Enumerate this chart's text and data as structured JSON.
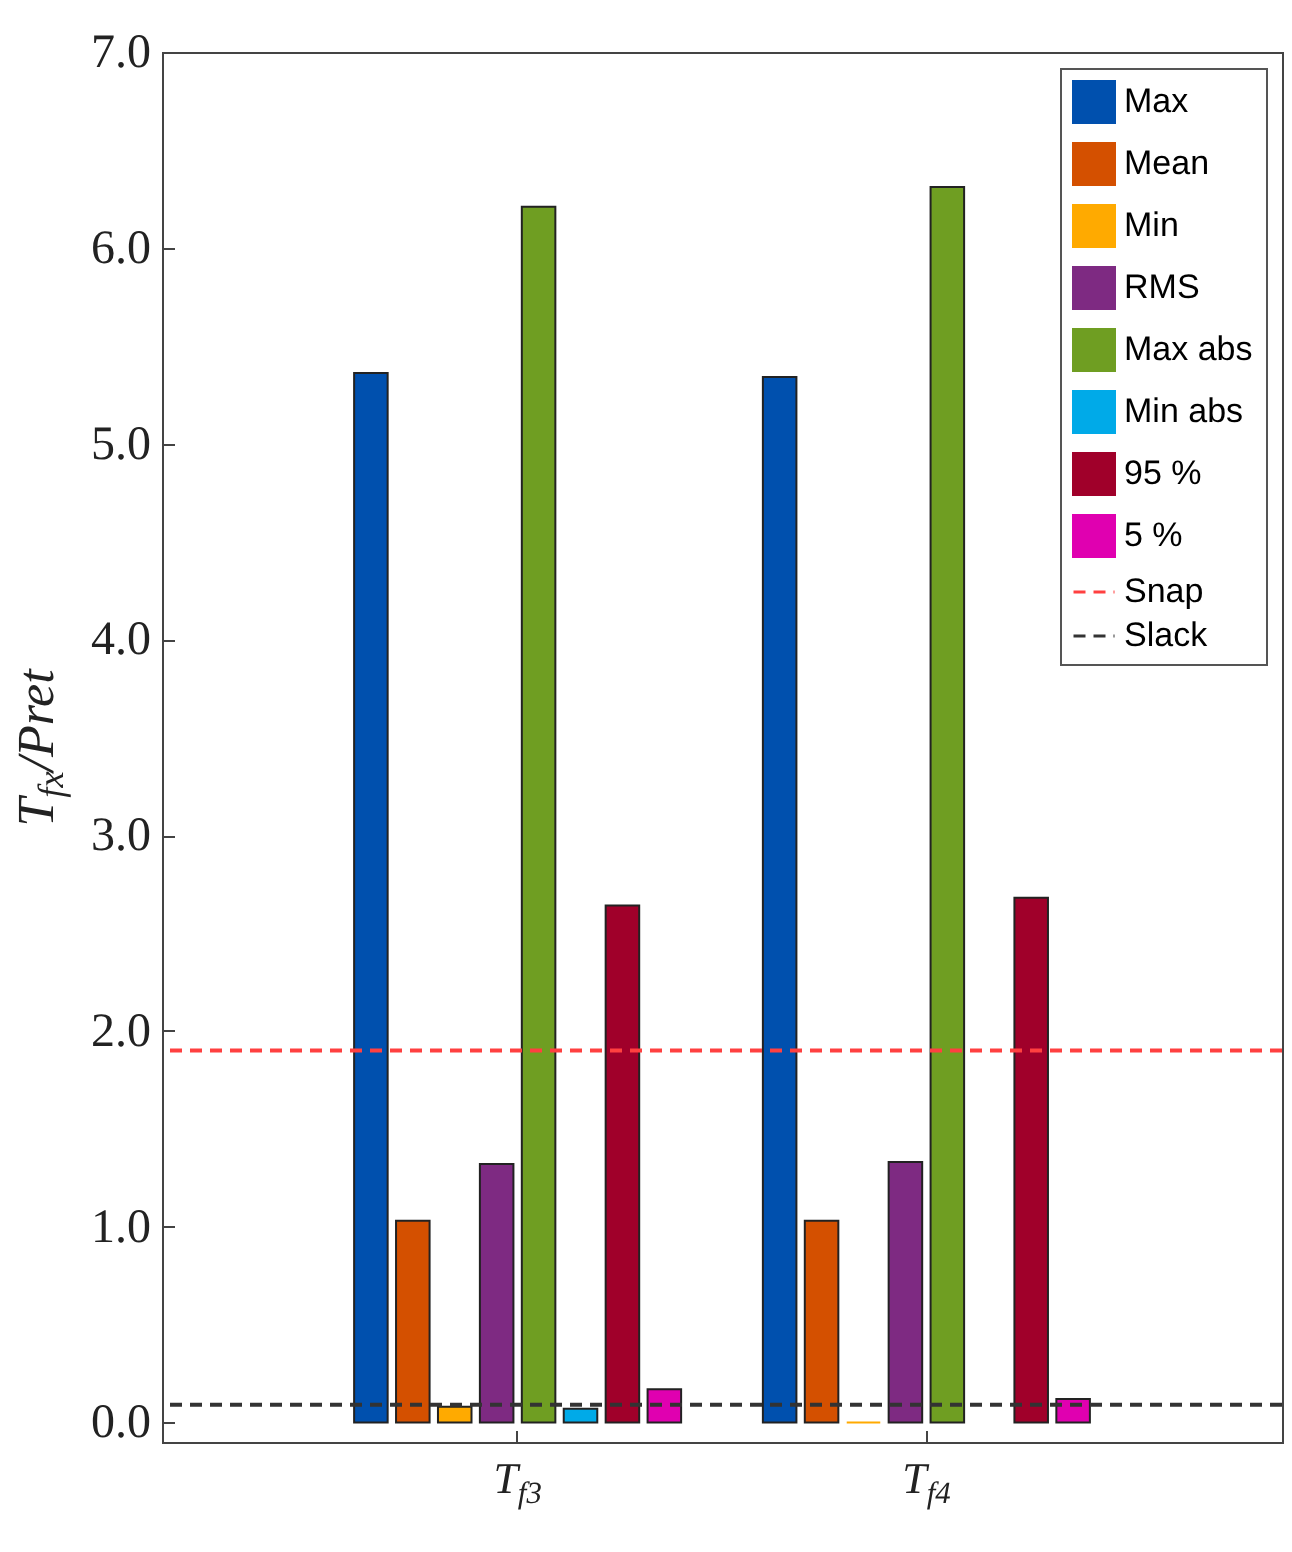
{
  "chart_data": {
    "type": "bar",
    "xlabel": null,
    "ylabel": "T$_{fx}$/Pret",
    "categories": [
      "T$_{f3}$",
      "T$_{f4}$"
    ],
    "ylim": [
      -0.1,
      7
    ],
    "yticks": [
      {
        "value": 0,
        "label": "0.0"
      },
      {
        "value": 1,
        "label": "1.0"
      },
      {
        "value": 2,
        "label": "2.0"
      },
      {
        "value": 3,
        "label": "3.0"
      },
      {
        "value": 4,
        "label": "4.0"
      },
      {
        "value": 5,
        "label": "5.0"
      },
      {
        "value": 6,
        "label": "6.0"
      },
      {
        "value": 7,
        "label": "7.0"
      }
    ],
    "legend": "top right",
    "series": [
      {
        "name": "Max",
        "color": "#0050ae",
        "values": [
          5.36,
          5.34
        ]
      },
      {
        "name": "Mean",
        "color": "#d45000",
        "values": [
          1.03,
          1.03
        ]
      },
      {
        "name": "Min",
        "color": "#ffaa00",
        "values": [
          0.08,
          0.0
        ]
      },
      {
        "name": "RMS",
        "color": "#7e2a82",
        "values": [
          1.32,
          1.33
        ]
      },
      {
        "name": "Max abs",
        "color": "#6f9e22",
        "values": [
          6.21,
          6.31
        ]
      },
      {
        "name": "Min abs",
        "color": "#00aae8",
        "values": [
          0.07,
          null
        ]
      },
      {
        "name": "95 %",
        "color": "#a0002a",
        "values": [
          2.64,
          2.68
        ]
      },
      {
        "name": "5 %",
        "color": "#e000b0",
        "values": [
          0.17,
          0.12
        ]
      }
    ],
    "ref_lines": [
      {
        "axis": "y",
        "value": 1.9,
        "label": "Snap",
        "color": "#ff4040",
        "line_style": "dashed"
      },
      {
        "axis": "y",
        "value": 0.09,
        "label": "Slack",
        "color": "#333333",
        "line_style": "dashed"
      }
    ]
  }
}
